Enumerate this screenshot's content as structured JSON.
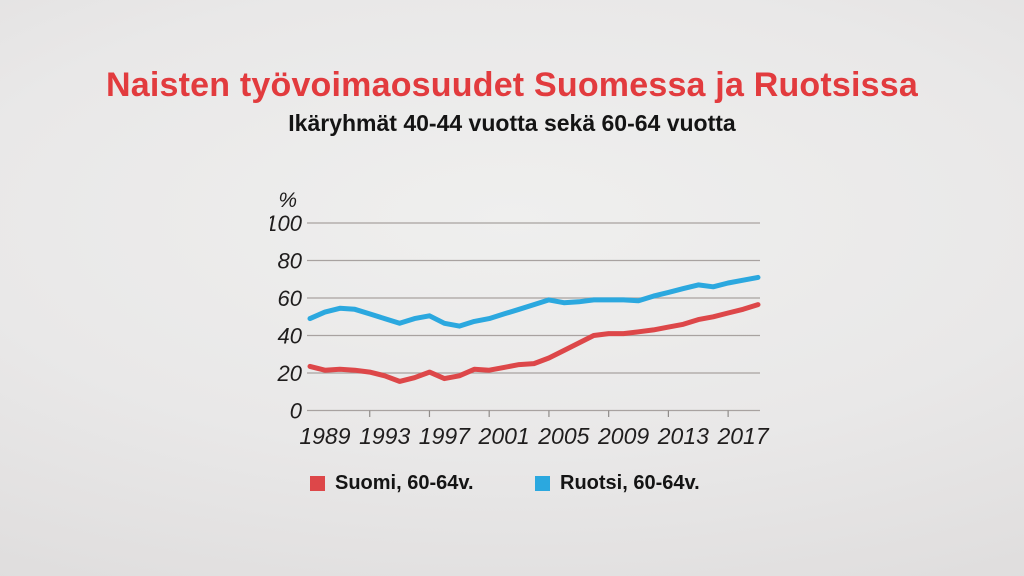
{
  "header": {
    "title": "Naisten työvoimaosuudet Suomessa ja Ruotsissa",
    "subtitle": "Ikäryhmät 40-44 vuotta sekä 60-64 vuotta"
  },
  "colors": {
    "title_red": "#e23b3e",
    "text_dark": "#141414",
    "axis_text": "#1f1d1d",
    "gridline": "#a8a2a0",
    "tick": "#8f8b89",
    "suomi_red": "#dd4749",
    "ruotsi_blue": "#2ba8df"
  },
  "chart_data": {
    "type": "line",
    "unit_label": "%",
    "x": [
      1988,
      1989,
      1990,
      1991,
      1992,
      1993,
      1994,
      1995,
      1996,
      1997,
      1998,
      1999,
      2000,
      2001,
      2002,
      2003,
      2004,
      2005,
      2006,
      2007,
      2008,
      2009,
      2010,
      2011,
      2012,
      2013,
      2014,
      2015,
      2016,
      2017,
      2018
    ],
    "series": [
      {
        "name": "Suomi, 60-64v.",
        "color": "#dd4749",
        "values": [
          23.5,
          21.5,
          22,
          21.5,
          20.5,
          18.5,
          15.5,
          17.5,
          20.5,
          17,
          18.5,
          22,
          21.5,
          23,
          24.5,
          25,
          28,
          32,
          36,
          40,
          41,
          41,
          42,
          43,
          44.5,
          46,
          48.5,
          50,
          52,
          54,
          56.5
        ]
      },
      {
        "name": "Ruotsi, 60-64v.",
        "color": "#2ba8df",
        "values": [
          49,
          52.5,
          54.5,
          54,
          51.5,
          49,
          46.5,
          49,
          50.5,
          46.5,
          45,
          47.5,
          49,
          51.5,
          54,
          56.5,
          59,
          57.5,
          58,
          59,
          59,
          59,
          58.5,
          61,
          63,
          65,
          67,
          66,
          68,
          69.5,
          71
        ]
      }
    ],
    "ytick_labels": [
      "0",
      "20",
      "40",
      "60",
      "80",
      "100"
    ],
    "yticks": [
      0,
      20,
      40,
      60,
      80,
      100
    ],
    "xtick_labels": [
      "1989",
      "1993",
      "1997",
      "2001",
      "2005",
      "2009",
      "2013",
      "2017"
    ],
    "xticks": [
      1989,
      1993,
      1997,
      2001,
      2005,
      2009,
      2013,
      2017
    ],
    "minor_ticks": [
      1992,
      1996,
      2000,
      2004,
      2008,
      2012,
      2016
    ],
    "xlim": [
      1988,
      2018
    ],
    "ylim": [
      0,
      100
    ],
    "grid": "horizontal",
    "legend_position": "bottom"
  },
  "legend": {
    "items": [
      {
        "label": "Suomi, 60-64v.",
        "color": "#dd4749"
      },
      {
        "label": "Ruotsi, 60-64v.",
        "color": "#2ba8df"
      }
    ]
  }
}
